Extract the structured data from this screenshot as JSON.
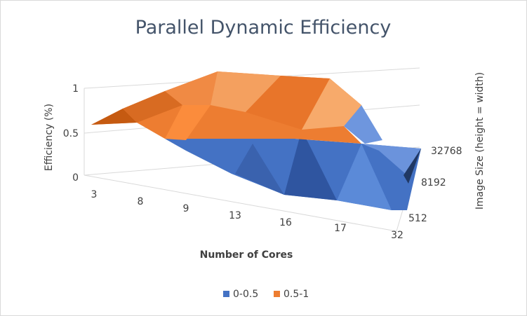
{
  "chart_data": {
    "type": "surface",
    "title": "Parallel Dynamic Efficiency",
    "xlabel": "Number of Cores",
    "ylabel": "Efficiency (%)",
    "zlabel": "Image Size (height = width)",
    "x_categories": [
      "3",
      "8",
      "9",
      "13",
      "16",
      "17",
      "32"
    ],
    "depth_categories": [
      "512",
      "8192",
      "32768"
    ],
    "zlim": [
      0,
      1
    ],
    "z_ticks": [
      "0",
      "0.5",
      "1"
    ],
    "legend": {
      "position": "bottom",
      "entries": [
        {
          "label": "0-0.5",
          "color": "#4472c4"
        },
        {
          "label": "0.5-1",
          "color": "#ed7d31"
        }
      ]
    },
    "grid": true
  }
}
